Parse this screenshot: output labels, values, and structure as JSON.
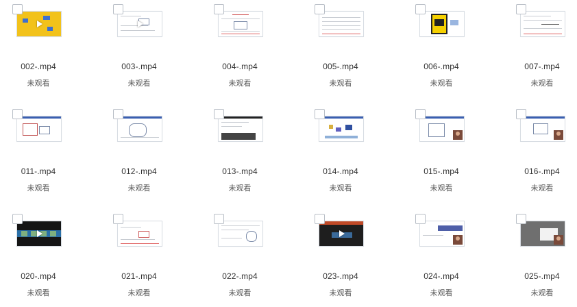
{
  "files": [
    {
      "name": "002-.mp4",
      "status": "未观看"
    },
    {
      "name": "003-.mp4",
      "status": "未观看"
    },
    {
      "name": "004-.mp4",
      "status": "未观看"
    },
    {
      "name": "005-.mp4",
      "status": "未观看"
    },
    {
      "name": "006-.mp4",
      "status": "未观看"
    },
    {
      "name": "007-.mp4",
      "status": "未观看"
    },
    {
      "name": "011-.mp4",
      "status": "未观看"
    },
    {
      "name": "012-.mp4",
      "status": "未观看"
    },
    {
      "name": "013-.mp4",
      "status": "未观看"
    },
    {
      "name": "014-.mp4",
      "status": "未观看"
    },
    {
      "name": "015-.mp4",
      "status": "未观看"
    },
    {
      "name": "016-.mp4",
      "status": "未观看"
    },
    {
      "name": "020-.mp4",
      "status": "未观看"
    },
    {
      "name": "021-.mp4",
      "status": "未观看"
    },
    {
      "name": "022-.mp4",
      "status": "未观看"
    },
    {
      "name": "023-.mp4",
      "status": "未观看"
    },
    {
      "name": "024-.mp4",
      "status": "未观看"
    },
    {
      "name": "025-.mp4",
      "status": "未观看"
    }
  ],
  "icons": {
    "checkbox": "checkbox-icon",
    "play": "play-icon"
  },
  "colors": {
    "accent_blue": "#3a5fb0",
    "yellow_thumb": "#f2c21b",
    "text": "#333333"
  }
}
